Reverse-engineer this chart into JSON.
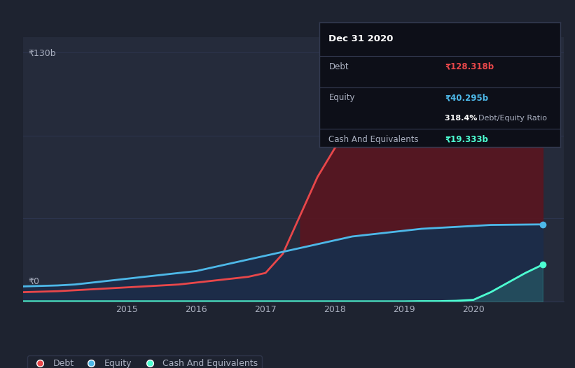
{
  "bg_color": "#1e2330",
  "plot_bg_color": "#252b3b",
  "grid_color": "#2e3650",
  "title": "Dec 31 2020",
  "ylabel_top": "₹130b",
  "ylabel_bottom": "₹0",
  "x_ticks": [
    2015,
    2016,
    2017,
    2018,
    2019,
    2020
  ],
  "debt_color": "#e8474a",
  "equity_color": "#4db8e8",
  "cash_color": "#4dffd2",
  "debt_fill_color": "#5a1520",
  "equity_fill_color": "#1c2d4a",
  "years": [
    2013.5,
    2014,
    2014.25,
    2014.5,
    2014.75,
    2015,
    2015.25,
    2015.5,
    2015.75,
    2016,
    2016.25,
    2016.5,
    2016.75,
    2017,
    2017.25,
    2017.5,
    2017.75,
    2018,
    2018.25,
    2018.5,
    2018.75,
    2019,
    2019.25,
    2019.5,
    2019.75,
    2020,
    2020.25,
    2020.5,
    2020.75,
    2021.0
  ],
  "debt": [
    5,
    5.5,
    6,
    6.5,
    7,
    7.5,
    8,
    8.5,
    9,
    10,
    11,
    12,
    13,
    15,
    25,
    45,
    65,
    80,
    90,
    95,
    97,
    99,
    102,
    104,
    106,
    108,
    112,
    118,
    124,
    128.318
  ],
  "equity": [
    8,
    8.5,
    9,
    10,
    11,
    12,
    13,
    14,
    15,
    16,
    18,
    20,
    22,
    24,
    26,
    28,
    30,
    32,
    34,
    35,
    36,
    37,
    38,
    38.5,
    39,
    39.5,
    40,
    40.1,
    40.2,
    40.295
  ],
  "cash": [
    0.2,
    0.2,
    0.2,
    0.2,
    0.2,
    0.2,
    0.2,
    0.2,
    0.2,
    0.2,
    0.2,
    0.2,
    0.2,
    0.2,
    0.2,
    0.2,
    0.2,
    0.2,
    0.2,
    0.2,
    0.2,
    0.2,
    0.3,
    0.3,
    0.5,
    1.0,
    5,
    10,
    15,
    19.333
  ],
  "tooltip_box_color": "#0d0f18",
  "tooltip_border_color": "#333a50",
  "ylim": [
    0,
    138
  ],
  "xlim": [
    2013.5,
    2021.3
  ],
  "legend_debt": "Debt",
  "legend_equity": "Equity",
  "legend_cash": "Cash And Equivalents",
  "tooltip_debt_label": "Debt",
  "tooltip_debt_value": "₹128.318b",
  "tooltip_equity_label": "Equity",
  "tooltip_equity_value": "₹40.295b",
  "tooltip_ratio": "318.4%",
  "tooltip_ratio_label": "Debt/Equity Ratio",
  "tooltip_cash_label": "Cash And Equivalents",
  "tooltip_cash_value": "₹19.333b"
}
